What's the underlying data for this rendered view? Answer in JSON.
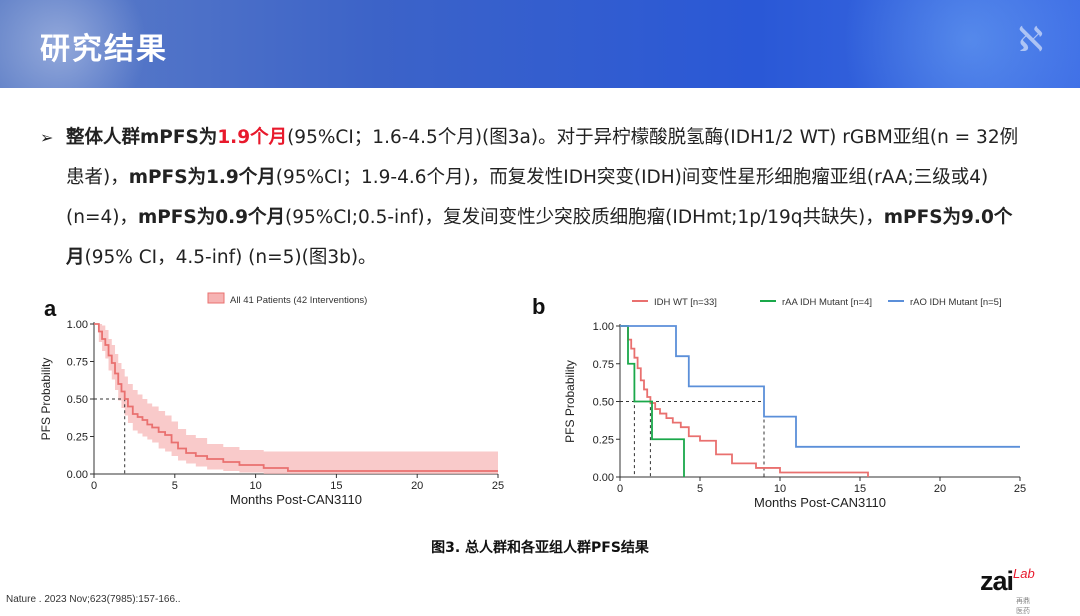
{
  "header": {
    "title": "研究结果"
  },
  "bullet": {
    "arrow": "➢",
    "p1_bold": "整体人群mPFS为",
    "p1_red": "1.9个月",
    "p2": "(95%CI；1.6-4.5个月)(图3a)。对于异柠檬酸脱氢酶(IDH1/2 WT) rGBM亚组(n = 32例患者)，",
    "p3_bold": "mPFS为1.9个月",
    "p4": "(95%CI；1.9-4.6个月)，而复发性IDH突变(IDH)间变性星形细胞瘤亚组(rAA;三级或4)(n=4)，",
    "p5_bold": "mPFS为0.9个月",
    "p6": "(95%CI;0.5-inf)，复发间变性少突胶质细胞瘤(IDHmt;1p/19q共缺失)，",
    "p7_bold": "mPFS为9.0个月",
    "p8": "(95% CI，4.5-inf) (n=5)(图3b)。"
  },
  "panel_labels": {
    "a": "a",
    "b": "b"
  },
  "chart_data": [
    {
      "type": "line",
      "panel": "a",
      "xlabel": "Months Post-CAN3110",
      "ylabel": "PFS Probability",
      "xlim": [
        0,
        25
      ],
      "ylim": [
        0,
        1
      ],
      "xticks": [
        "0",
        "5",
        "10",
        "15",
        "20",
        "25"
      ],
      "yticks": [
        "0.00",
        "0.25",
        "0.50",
        "0.75",
        "1.00"
      ],
      "legend": "top",
      "median_line": {
        "x": 1.9,
        "y": 0.5
      },
      "series": [
        {
          "name": "All 41 Patients (42 Interventions)",
          "color": "#e9706f",
          "band_color": "#f6b3b3",
          "x": [
            0,
            0.3,
            0.5,
            0.7,
            0.9,
            1.1,
            1.3,
            1.5,
            1.7,
            1.9,
            2.1,
            2.4,
            2.7,
            3.0,
            3.3,
            3.6,
            4.0,
            4.4,
            4.8,
            5.2,
            5.7,
            6.3,
            7.0,
            8.0,
            9.0,
            10.5,
            12.0,
            25.0
          ],
          "y": [
            1.0,
            0.95,
            0.9,
            0.86,
            0.79,
            0.74,
            0.67,
            0.6,
            0.55,
            0.5,
            0.45,
            0.4,
            0.38,
            0.36,
            0.33,
            0.31,
            0.28,
            0.26,
            0.21,
            0.17,
            0.14,
            0.12,
            0.1,
            0.08,
            0.06,
            0.04,
            0.02,
            0.02
          ],
          "lower": [
            1.0,
            0.88,
            0.82,
            0.77,
            0.69,
            0.63,
            0.56,
            0.49,
            0.44,
            0.39,
            0.34,
            0.29,
            0.27,
            0.25,
            0.23,
            0.21,
            0.17,
            0.15,
            0.12,
            0.09,
            0.07,
            0.05,
            0.03,
            0.02,
            0.01,
            0.0,
            0.0,
            0.0
          ],
          "upper": [
            1.0,
            1.0,
            0.99,
            0.96,
            0.9,
            0.86,
            0.8,
            0.74,
            0.7,
            0.65,
            0.6,
            0.56,
            0.53,
            0.5,
            0.47,
            0.45,
            0.42,
            0.39,
            0.35,
            0.3,
            0.26,
            0.24,
            0.2,
            0.18,
            0.16,
            0.15,
            0.15,
            0.15
          ]
        }
      ]
    },
    {
      "type": "line",
      "panel": "b",
      "xlabel": "Months Post-CAN3110",
      "ylabel": "PFS Probability",
      "xlim": [
        0,
        25
      ],
      "ylim": [
        0,
        1
      ],
      "xticks": [
        "0",
        "5",
        "10",
        "15",
        "20",
        "25"
      ],
      "yticks": [
        "0.00",
        "0.25",
        "0.50",
        "0.75",
        "1.00"
      ],
      "legend": "top",
      "median_lines": [
        {
          "x": 0.9,
          "y": 0.5
        },
        {
          "x": 1.9,
          "y": 0.5
        },
        {
          "x": 9.0,
          "y": 0.5
        }
      ],
      "series": [
        {
          "name": "IDH WT [n=33]",
          "color": "#e9706f",
          "x": [
            0,
            0.5,
            0.7,
            0.9,
            1.1,
            1.3,
            1.5,
            1.7,
            1.9,
            2.2,
            2.5,
            2.9,
            3.3,
            3.8,
            4.3,
            5.0,
            6.0,
            7.0,
            8.5,
            9.0,
            10.0,
            11.0,
            15.5
          ],
          "y": [
            1.0,
            0.91,
            0.85,
            0.79,
            0.72,
            0.64,
            0.58,
            0.53,
            0.49,
            0.45,
            0.42,
            0.39,
            0.36,
            0.33,
            0.27,
            0.24,
            0.15,
            0.09,
            0.06,
            0.06,
            0.03,
            0.03,
            0.0
          ]
        },
        {
          "name": "rAA IDH Mutant [n=4]",
          "color": "#1aa84a",
          "x": [
            0,
            0.5,
            0.9,
            2.0,
            4.0,
            4.0
          ],
          "y": [
            1.0,
            0.75,
            0.5,
            0.25,
            0.25,
            0.0
          ]
        },
        {
          "name": "rAO IDH Mutant [n=5]",
          "color": "#5b8fd9",
          "x": [
            0,
            3.5,
            4.3,
            7.5,
            9.0,
            11.0,
            25.0
          ],
          "y": [
            1.0,
            0.8,
            0.6,
            0.6,
            0.4,
            0.2,
            0.2
          ]
        }
      ]
    }
  ],
  "caption": "图3. 总人群和各亚组人群PFS结果",
  "footer": {
    "reference": "Nature . 2023 Nov;623(7985):157-166..",
    "logo_main": "zai",
    "logo_lab": "Lab",
    "logo_sub": "再鼎医药"
  }
}
